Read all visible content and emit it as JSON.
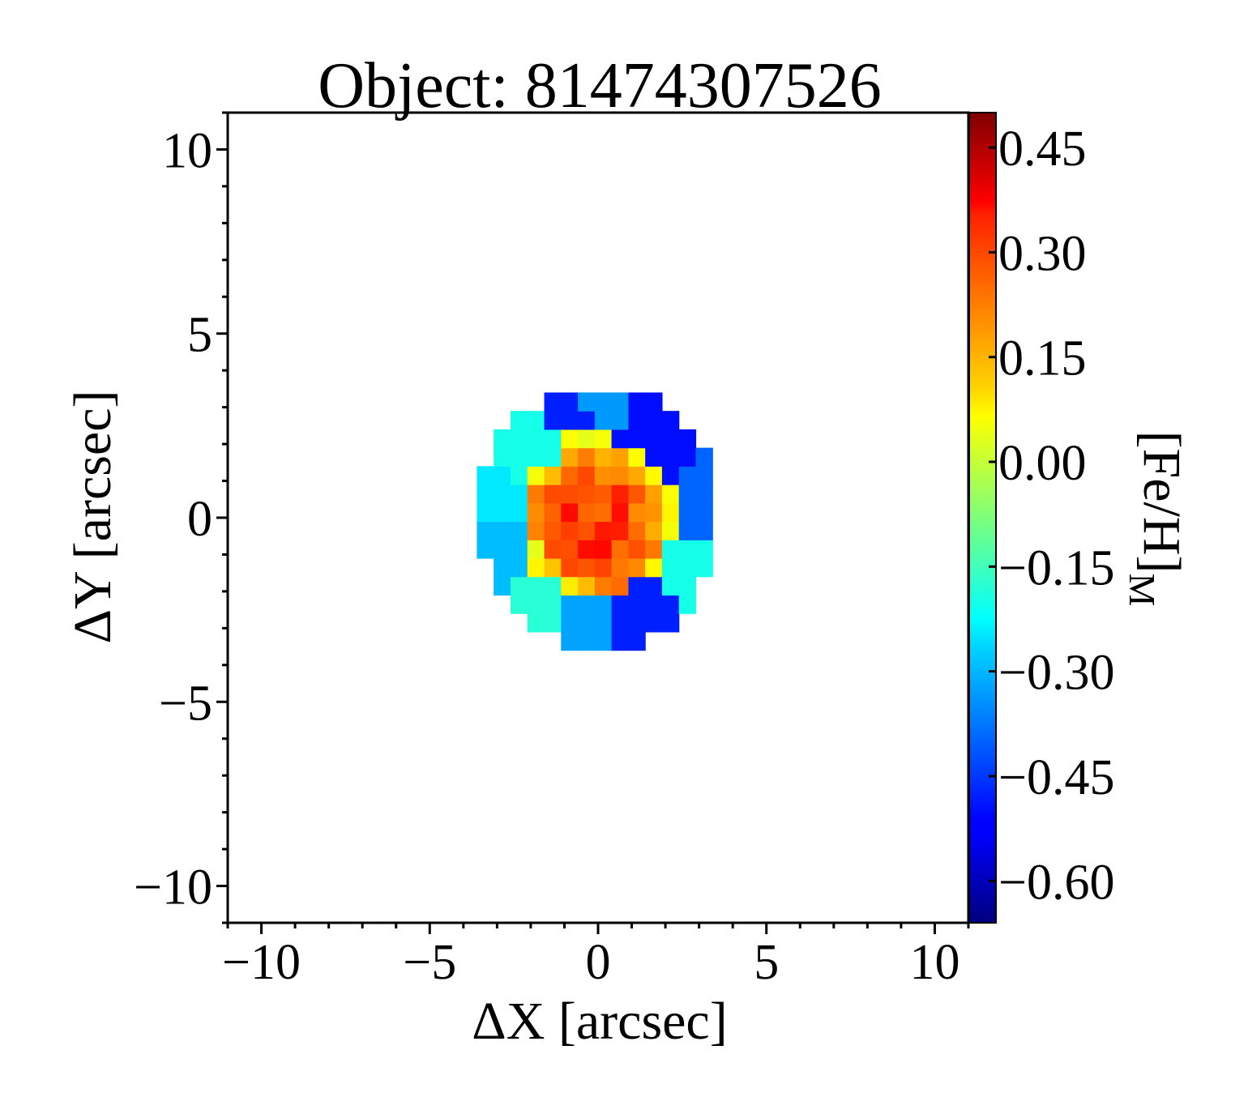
{
  "chart_data": {
    "type": "heatmap",
    "title": "Object: 81474307526",
    "xlabel": "ΔX [arcsec]",
    "ylabel": "ΔY [arcsec]",
    "colorbar_label": "[Fe/H]",
    "colorbar_label_sub": "M",
    "xlim": [
      -11,
      11
    ],
    "ylim": [
      -11,
      11
    ],
    "x_ticks": [
      {
        "value": -10,
        "label": "−10"
      },
      {
        "value": -5,
        "label": "−5"
      },
      {
        "value": 0,
        "label": "0"
      },
      {
        "value": 5,
        "label": "5"
      },
      {
        "value": 10,
        "label": "10"
      }
    ],
    "y_ticks": [
      {
        "value": 10,
        "label": "10"
      },
      {
        "value": 5,
        "label": "5"
      },
      {
        "value": 0,
        "label": "0"
      },
      {
        "value": -5,
        "label": "−5"
      },
      {
        "value": -10,
        "label": "−10"
      }
    ],
    "colorbar_range": [
      -0.66,
      0.5
    ],
    "colorbar_ticks": [
      {
        "value": 0.45,
        "label": "0.45"
      },
      {
        "value": 0.3,
        "label": "0.30"
      },
      {
        "value": 0.15,
        "label": "0.15"
      },
      {
        "value": 0.0,
        "label": "0.00"
      },
      {
        "value": -0.15,
        "label": "−0.15"
      },
      {
        "value": -0.3,
        "label": "−0.30"
      },
      {
        "value": -0.45,
        "label": "−0.45"
      },
      {
        "value": -0.6,
        "label": "−0.60"
      }
    ],
    "colormap": "jet",
    "map": {
      "center": [
        0,
        0
      ],
      "radius": 3.6,
      "pixel": 0.5,
      "sectors": [
        {
          "from": 75,
          "to": 97,
          "value": -0.34
        },
        {
          "from": 97,
          "to": 120,
          "value": -0.48
        },
        {
          "from": 120,
          "to": 155,
          "value": -0.2
        },
        {
          "from": 155,
          "to": 183,
          "value": -0.25
        },
        {
          "from": 183,
          "to": 218,
          "value": -0.3
        },
        {
          "from": 218,
          "to": 250,
          "value": -0.18
        },
        {
          "from": 250,
          "to": 280,
          "value": -0.33
        },
        {
          "from": 280,
          "to": 313,
          "value": -0.48
        },
        {
          "from": 313,
          "to": 345,
          "value": -0.2
        },
        {
          "from": 345,
          "to": 388,
          "value": -0.4
        },
        {
          "from": 388,
          "to": 435,
          "value": -0.5
        }
      ],
      "core": [
        {
          "r_max": 1.0,
          "value": 0.29
        },
        {
          "r_max": 1.6,
          "value": 0.25
        },
        {
          "r_max": 2.0,
          "value": 0.18
        },
        {
          "r_max": 2.35,
          "value": 0.09
        }
      ]
    }
  }
}
